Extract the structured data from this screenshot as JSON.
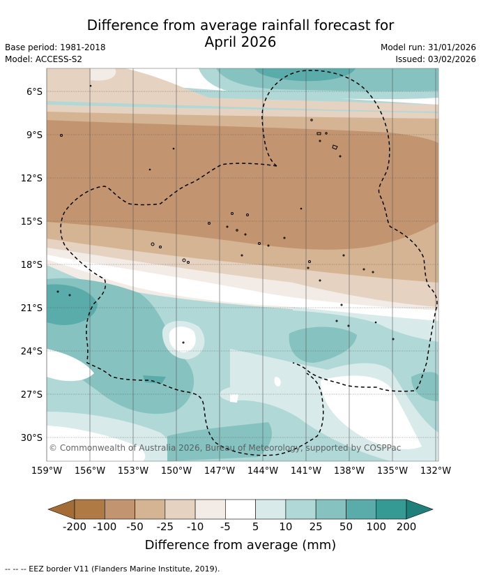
{
  "title": "Difference from average rainfall forecast for",
  "title_line2": "April 2026",
  "base_period": "Base period: 1981-2018",
  "model": "Model: ACCESS-S2",
  "model_run": "Model run: 31/01/2026",
  "issued": "Issued: 03/02/2026",
  "copyright": "© Commonwealth of Australia 2026, Bureau of Meteorology, supported by COSPPac",
  "lat_labels": [
    "6°S",
    "9°S",
    "12°S",
    "15°S",
    "18°S",
    "21°S",
    "24°S",
    "27°S",
    "30°S"
  ],
  "lon_labels": [
    "159°W",
    "156°W",
    "153°W",
    "150°W",
    "147°W",
    "144°W",
    "141°W",
    "138°W",
    "135°W",
    "132°W"
  ],
  "colorbar": {
    "label": "Difference from average (mm)",
    "ticks": [
      "-200",
      "-100",
      "-50",
      "-25",
      "-10",
      "-5",
      "5",
      "10",
      "25",
      "50",
      "100",
      "200"
    ],
    "colors": [
      "#a36d35",
      "#b07a45",
      "#c29570",
      "#d5b493",
      "#e5d2c0",
      "#f3ece6",
      "#ffffff",
      "#d8ebea",
      "#afd8d6",
      "#86c3c0",
      "#5aacaa",
      "#359994",
      "#1f7f7b"
    ]
  },
  "footer": "--  --  -- EEZ border V11 (Flanders Marine Institute, 2019).",
  "colors": {
    "brown_strong": "#c29570",
    "brown_mid": "#d5b493",
    "brown_light": "#e5d2c0",
    "brown_pale": "#f3ece6",
    "teal_pale": "#d8ebea",
    "teal_light": "#afd8d6",
    "teal_mid": "#86c3c0",
    "teal_strong": "#5aacaa"
  }
}
